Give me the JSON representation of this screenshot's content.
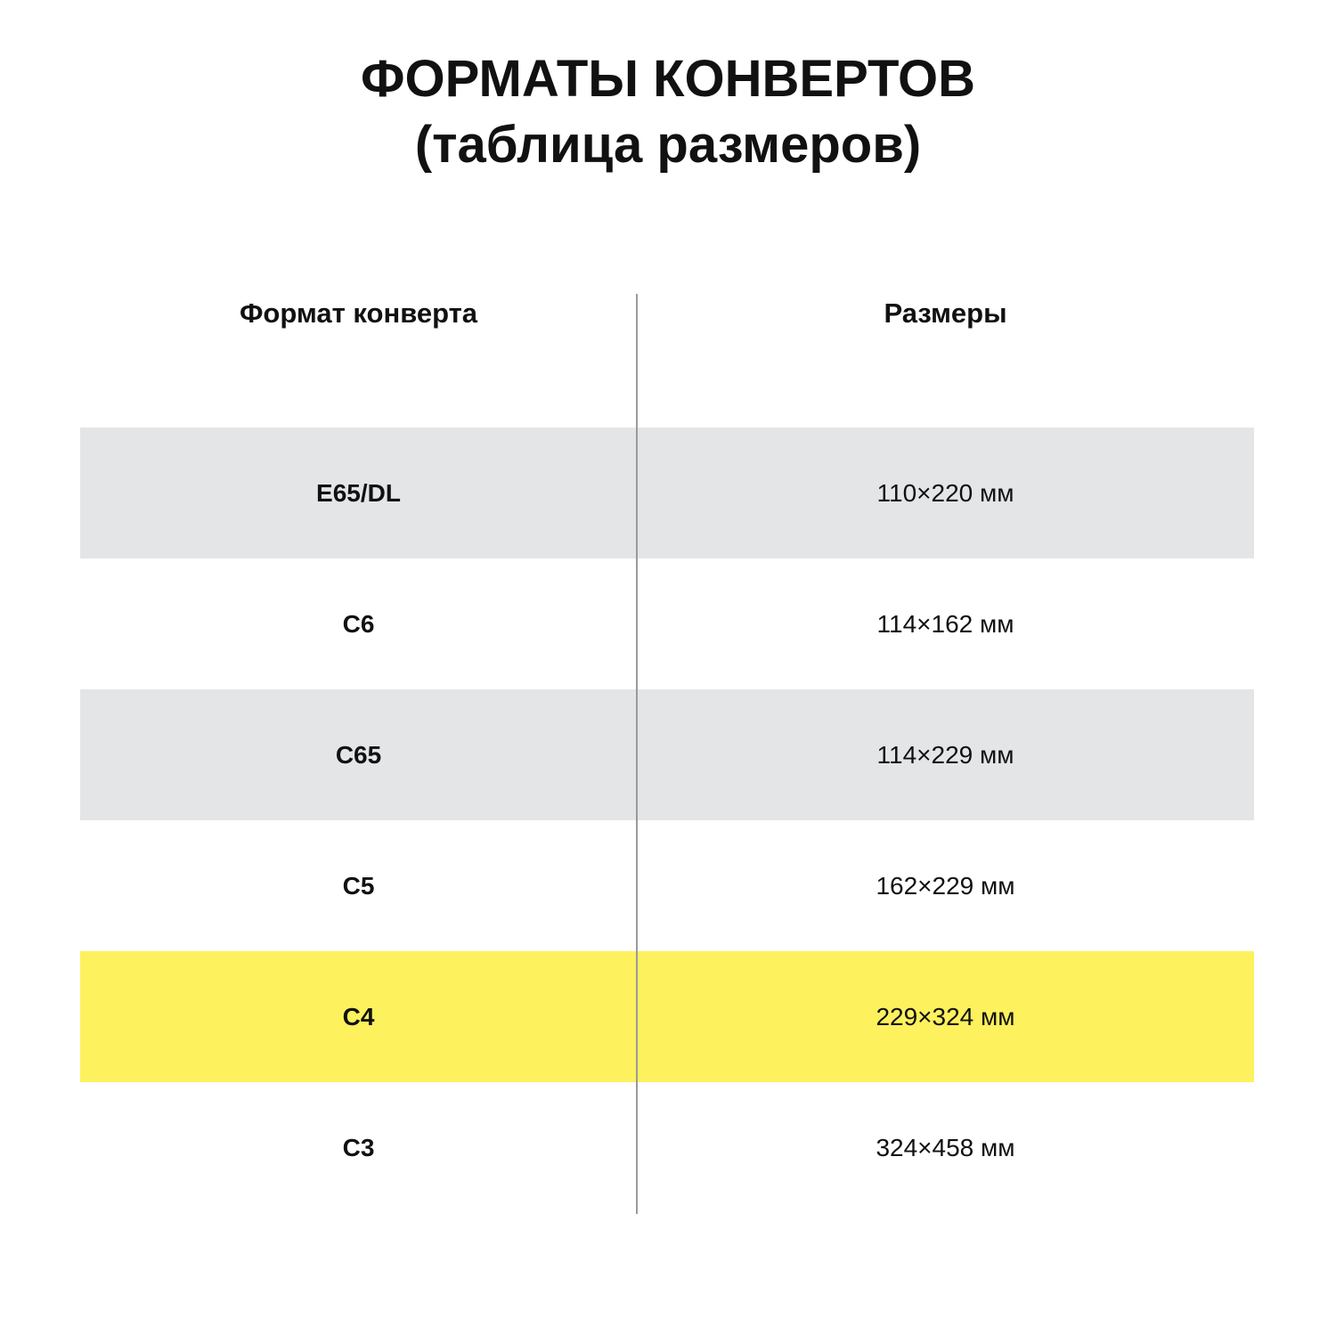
{
  "title": {
    "line1": "ФОРМАТЫ КОНВЕРТОВ",
    "line2": "(таблица размеров)"
  },
  "table": {
    "headers": [
      "Формат конверта",
      "Размеры"
    ],
    "rows": [
      {
        "format": "E65/DL",
        "size": "110×220 мм",
        "bg": "#e4e5e7"
      },
      {
        "format": "C6",
        "size": "114×162 мм",
        "bg": "#ffffff"
      },
      {
        "format": "C65",
        "size": "114×229 мм",
        "bg": "#e4e5e7"
      },
      {
        "format": "C5",
        "size": "162×229 мм",
        "bg": "#ffffff"
      },
      {
        "format": "C4",
        "size": "229×324 мм",
        "bg": "#fdf15e"
      },
      {
        "format": "C3",
        "size": "324×458 мм",
        "bg": "#ffffff"
      }
    ]
  }
}
